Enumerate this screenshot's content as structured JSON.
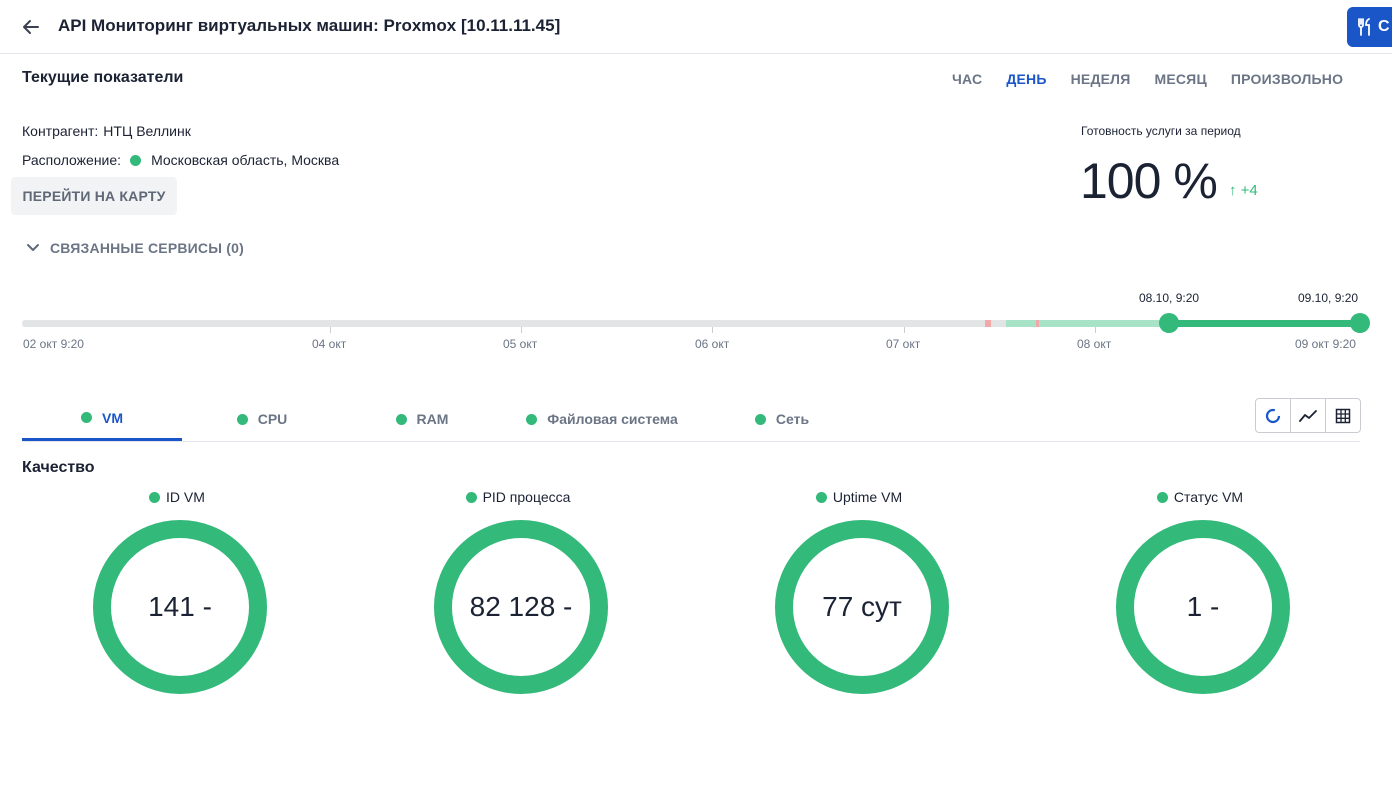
{
  "header": {
    "title": "API Мониторинг виртуальных машин: Proxmox [10.11.11.45]",
    "action_label": "С",
    "back_icon": "arrow-left-icon",
    "action_icon": "utensils-icon"
  },
  "current": {
    "title": "Текущие показатели",
    "periods": [
      "ЧАС",
      "ДЕНЬ",
      "НЕДЕЛЯ",
      "МЕСЯЦ",
      "ПРОИЗВОЛЬНО"
    ],
    "active_period": "ДЕНЬ",
    "contractor_label": "Контрагент:",
    "contractor_value": "НТЦ Веллинк",
    "location_label": "Расположение:",
    "location_value": "Московская область, Москва",
    "map_button": "ПЕРЕЙТИ НА КАРТУ",
    "readiness_label": "Готовность услуги за период",
    "readiness_value": "100 %",
    "readiness_delta": "↑  +4",
    "related_label": "СВЯЗАННЫЕ СЕРВИСЫ (0)"
  },
  "timeline": {
    "start_date": "08.10, 9:20",
    "end_date": "09.10, 9:20",
    "ticks": [
      "02 окт 9:20",
      "04 окт",
      "05 окт",
      "06 окт",
      "07 окт",
      "08 окт",
      "09 окт 9:20"
    ]
  },
  "metric_tabs": [
    "VM",
    "CPU",
    "RAM",
    "Файловая система",
    "Сеть"
  ],
  "active_metric_tab": "VM",
  "view_icons": [
    "donut-chart-icon",
    "line-chart-icon",
    "table-grid-icon"
  ],
  "quality": {
    "title": "Качество",
    "gauges": [
      {
        "label": "ID VM",
        "value": "141 -"
      },
      {
        "label": "PID процесса",
        "value": "82 128 -"
      },
      {
        "label": "Uptime VM",
        "value": "77 сут"
      },
      {
        "label": "Статус VM",
        "value": "1 -"
      }
    ]
  },
  "colors": {
    "accent": "#1b56c8",
    "ok": "#33b97a",
    "ok_light": "#a8e3c7",
    "error": "#f2a8a8",
    "track": "#e3e4e6"
  }
}
